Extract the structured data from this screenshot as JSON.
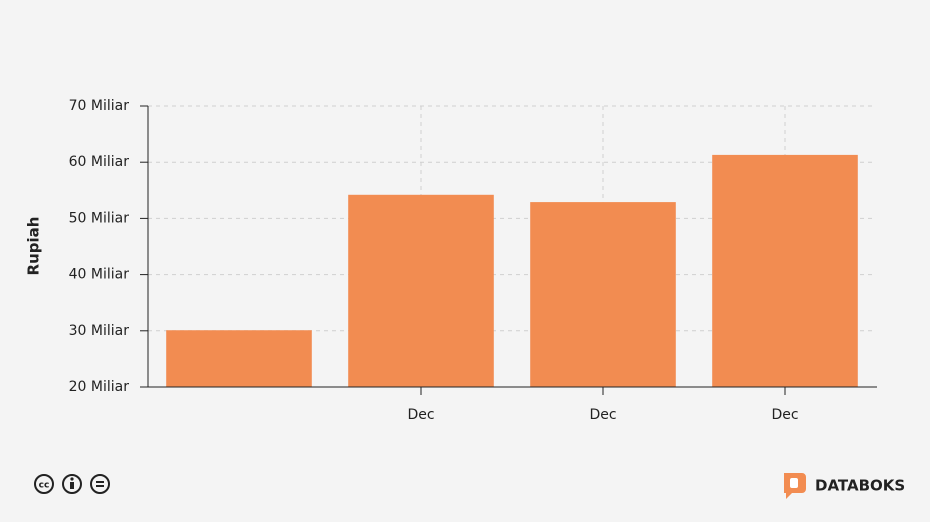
{
  "chart_data": {
    "type": "bar",
    "y_label": "Rupiah",
    "categories": [
      null,
      "Dec",
      "Dec",
      "Dec"
    ],
    "values": [
      30.1,
      54.2,
      52.9,
      61.3
    ],
    "color": "#f28c51",
    "ylim": [
      20,
      70
    ],
    "yticks": [
      {
        "value": 20,
        "label": "20 Miliar"
      },
      {
        "value": 30,
        "label": "30 Miliar"
      },
      {
        "value": 40,
        "label": "40 Miliar"
      },
      {
        "value": 50,
        "label": "50 Miliar"
      },
      {
        "value": 60,
        "label": "60 Miliar"
      },
      {
        "value": 70,
        "label": "70 Miliar"
      }
    ],
    "grid": true
  },
  "brand": "DATABOKS"
}
